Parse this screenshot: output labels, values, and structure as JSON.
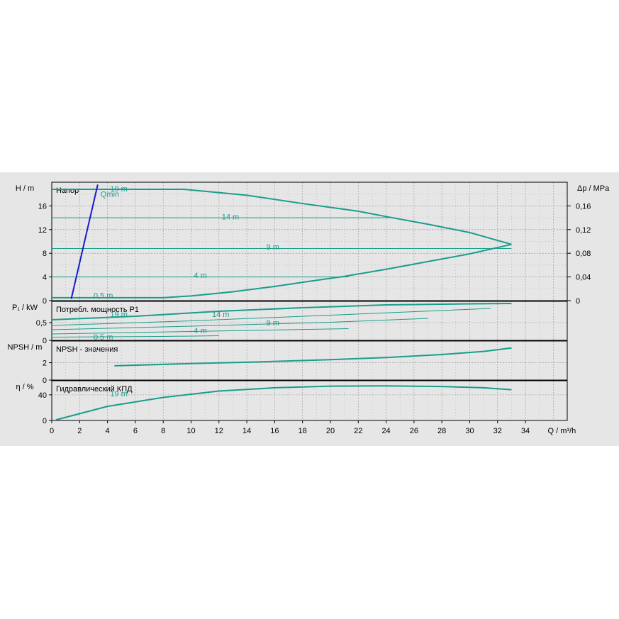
{
  "colors": {
    "curve": "#1a9d8c",
    "qmin": "#1a1acc",
    "grid": "#555555",
    "plot_bg": "#e6e6e6"
  },
  "chart_data": {
    "type": "line",
    "x_axis": {
      "label": "Q / m³/h",
      "range": [
        0,
        37
      ],
      "ticks": [
        0,
        2,
        4,
        6,
        8,
        10,
        12,
        14,
        16,
        18,
        20,
        22,
        24,
        26,
        28,
        30,
        32,
        34
      ],
      "tick_labels": [
        "0",
        "2",
        "4",
        "6",
        "8",
        "10",
        "12",
        "14",
        "16",
        "18",
        "20",
        "22",
        "24",
        "26",
        "28",
        "30",
        "32",
        "34"
      ]
    },
    "panels": [
      {
        "id": "head",
        "title": "Напор",
        "ylabel": "H / m",
        "ylim": [
          0,
          20
        ],
        "yticks": [
          0,
          4,
          8,
          12,
          16
        ],
        "ytick_labels": [
          "0",
          "4",
          "8",
          "12",
          "16"
        ],
        "y2label": "Δp / MPa",
        "y2ticks": [
          0,
          0.04,
          0.08,
          0.12,
          0.16
        ],
        "y2tick_labels": [
          "0",
          "0,04",
          "0,08",
          "0,12",
          "0,16"
        ],
        "series": [
          {
            "name": "19 m",
            "x": [
              0,
              9.5,
              14,
              18,
              22,
              24,
              27,
              30,
              33
            ],
            "y": [
              18.8,
              18.8,
              17.8,
              16.4,
              15.1,
              14.2,
              12.9,
              11.5,
              9.5
            ]
          },
          {
            "name": "14 m",
            "x": [
              0,
              24.2
            ],
            "y": [
              14,
              14
            ]
          },
          {
            "name": "9 m",
            "x": [
              0,
              33
            ],
            "y": [
              8.8,
              8.8
            ]
          },
          {
            "name": "4 m",
            "x": [
              0,
              21.3
            ],
            "y": [
              4,
              4
            ]
          },
          {
            "name": "0,5 m",
            "x": [
              0,
              8,
              10,
              13,
              16,
              18,
              21,
              24,
              27,
              30,
              33
            ],
            "y": [
              0.5,
              0.5,
              0.8,
              1.5,
              2.4,
              3.1,
              4.1,
              5.3,
              6.6,
              7.9,
              9.5
            ]
          }
        ],
        "annotations": [
          {
            "text": "Qmin",
            "x": 3.5,
            "y": 18
          }
        ],
        "qmin_line": {
          "x": [
            1.4,
            3.3
          ],
          "y": [
            0.3,
            19.6
          ]
        }
      },
      {
        "id": "power",
        "title": "Потребл. мощность P1",
        "ylabel": "P₁ / kW",
        "ylim": [
          0,
          1.1
        ],
        "yticks": [
          0,
          0.5
        ],
        "ytick_labels": [
          "0",
          "0,5"
        ],
        "series": [
          {
            "name": "19 m",
            "x": [
              0,
              6,
              12,
              18,
              24,
              30,
              33
            ],
            "y": [
              0.58,
              0.68,
              0.82,
              0.92,
              1.0,
              1.03,
              1.04
            ]
          },
          {
            "name": "14 m",
            "x": [
              0,
              10,
              20,
              31.5
            ],
            "y": [
              0.42,
              0.55,
              0.71,
              0.9
            ]
          },
          {
            "name": "9 m",
            "x": [
              0,
              10,
              20,
              27
            ],
            "y": [
              0.3,
              0.4,
              0.51,
              0.62
            ]
          },
          {
            "name": "4 m",
            "x": [
              0,
              10,
              21.3
            ],
            "y": [
              0.18,
              0.25,
              0.33
            ]
          },
          {
            "name": "0,5 m",
            "x": [
              0,
              8,
              12
            ],
            "y": [
              0.09,
              0.11,
              0.13
            ]
          }
        ]
      },
      {
        "id": "npsh",
        "title": "NPSH - значения",
        "ylabel": "NPSH / m",
        "ylim": [
          0,
          4.5
        ],
        "yticks": [
          0,
          2
        ],
        "ytick_labels": [
          "0",
          "2"
        ],
        "series": [
          {
            "name": "NPSH",
            "x": [
              4.5,
              10,
              15,
              20,
              24,
              28,
              31,
              33
            ],
            "y": [
              1.65,
              1.9,
              2.1,
              2.35,
              2.6,
              2.95,
              3.3,
              3.7
            ]
          }
        ]
      },
      {
        "id": "efficiency",
        "title": "Гидравлический КПД",
        "ylabel": "η / %",
        "ylim": [
          0,
          62
        ],
        "yticks": [
          0,
          40
        ],
        "ytick_labels": [
          "0",
          "40"
        ],
        "series": [
          {
            "name": "19 m",
            "x": [
              0.3,
              4,
              8,
              12,
              16,
              20,
              24,
              28,
              31,
              33
            ],
            "y": [
              1,
              22,
              36,
              46,
              51,
              53.5,
              54,
              53,
              51,
              48
            ]
          }
        ]
      }
    ],
    "grid": true
  }
}
